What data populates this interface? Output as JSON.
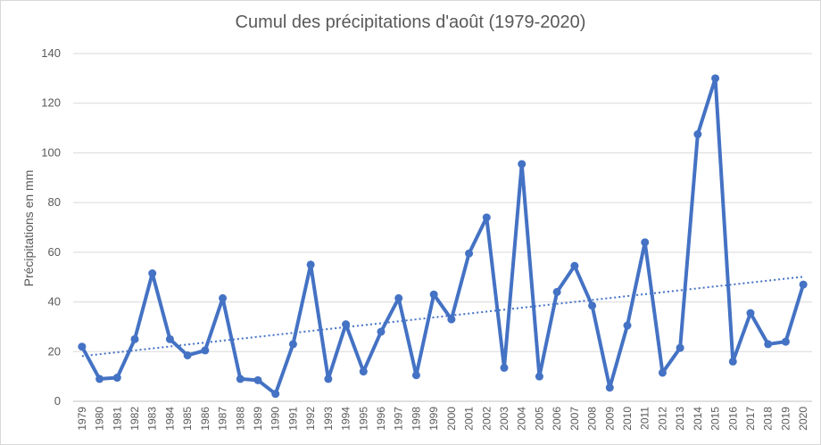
{
  "chart_data": {
    "type": "line",
    "title": "Cumul des précipitations d'août (1979-2020)",
    "xlabel": "",
    "ylabel": "Précipitations en mm",
    "ylim": [
      0,
      140
    ],
    "yticks": [
      0,
      20,
      40,
      60,
      80,
      100,
      120,
      140
    ],
    "grid": true,
    "legend": "none",
    "categories": [
      "1979",
      "1980",
      "1981",
      "1982",
      "1983",
      "1984",
      "1985",
      "1986",
      "1987",
      "1988",
      "1989",
      "1990",
      "1991",
      "1992",
      "1993",
      "1994",
      "1995",
      "1996",
      "1997",
      "1998",
      "1999",
      "2000",
      "2001",
      "2002",
      "2003",
      "2004",
      "2005",
      "2006",
      "2007",
      "2008",
      "2009",
      "2010",
      "2011",
      "2012",
      "2013",
      "2014",
      "2015",
      "2016",
      "2017",
      "2018",
      "2019",
      "2020"
    ],
    "series": [
      {
        "values": [
          22,
          9,
          9.5,
          25,
          51.5,
          25,
          18.5,
          20.5,
          41.5,
          9,
          8.5,
          3,
          23,
          55,
          9,
          31,
          12,
          28,
          41.5,
          10.5,
          43,
          33,
          59.5,
          74,
          13.5,
          95.5,
          10,
          44,
          54.5,
          38.5,
          5.5,
          30.5,
          64,
          11.5,
          21.5,
          107.5,
          130,
          16,
          35.5,
          23,
          24,
          47
        ],
        "color": "#4472c4"
      }
    ],
    "trendline": {
      "type": "linear",
      "style": "dotted",
      "color": "#4472c4"
    }
  }
}
